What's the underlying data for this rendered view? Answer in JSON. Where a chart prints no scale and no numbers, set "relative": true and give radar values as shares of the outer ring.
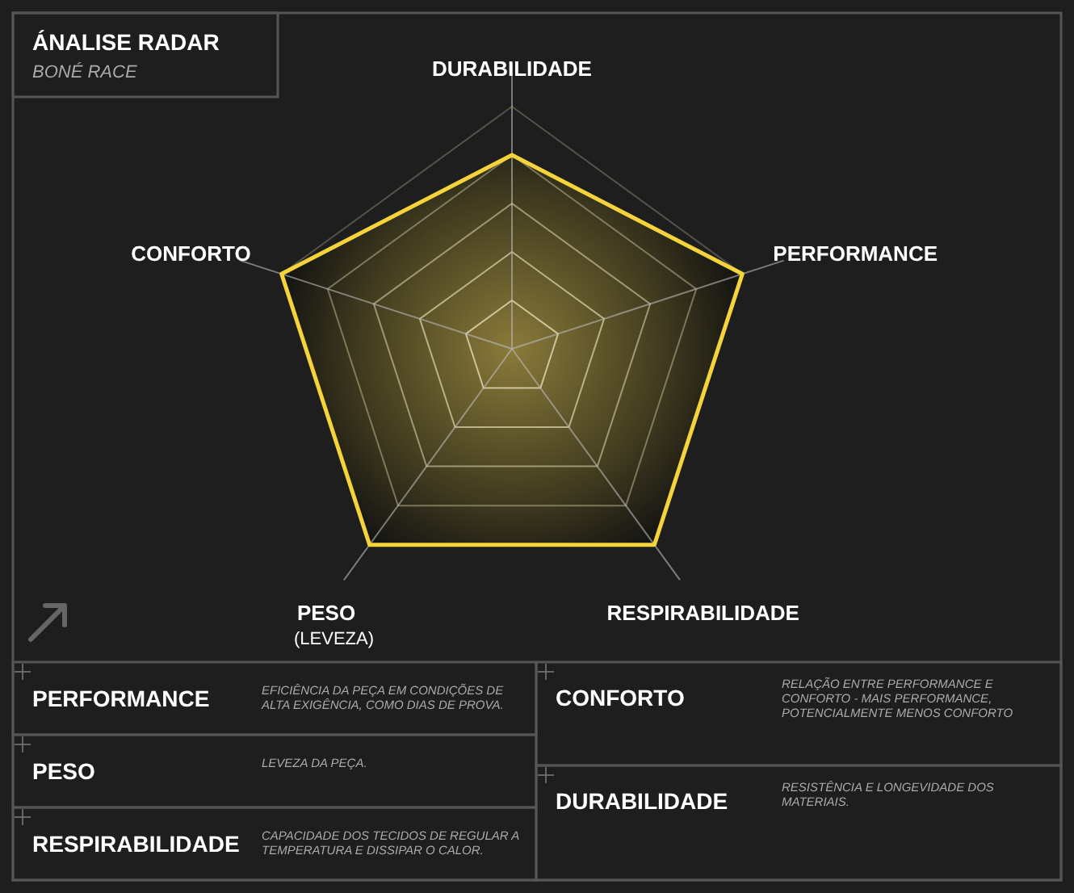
{
  "chart_data": [
    {
      "type": "radar",
      "title": "ÁNALISE RADAR",
      "subtitle": "BONÉ RACE",
      "relative": true,
      "categories": [
        "DURABILIDADE",
        "PERFORMANCE",
        "RESPIRABILIDADE",
        "PESO\n(LEVEZA)",
        "CONFORTO"
      ],
      "series": [
        {
          "color": "#f5d33a",
          "values": [
            0.8,
            1,
            1,
            1,
            1
          ]
        }
      ]
    },
    {
      "type": "other",
      "annotations": [
        "PERFORMANCE",
        "EFICIÊNCIA DA PEÇA EM CONDIÇÕES DE ALTA EXIGÊNCIA, COMO DIAS DE PROVA.",
        "PESO",
        "LEVEZA DA PEÇA.",
        "RESPIRABILIDADE",
        "CAPACIDADE DOS TECIDOS DE REGULAR A TEMPERATURA E DISSIPAR O CALOR.",
        "CONFORTO",
        "RELAÇÃO ENTRE PERFORMANCE E CONFORTO - MAIS PERFORMANCE, POTENCIALMENTE MENOS CONFORTO",
        "DURABILIDADE",
        "RESISTÊNCIA E LONGEVIDADE DOS MATERIAIS."
      ]
    }
  ]
}
